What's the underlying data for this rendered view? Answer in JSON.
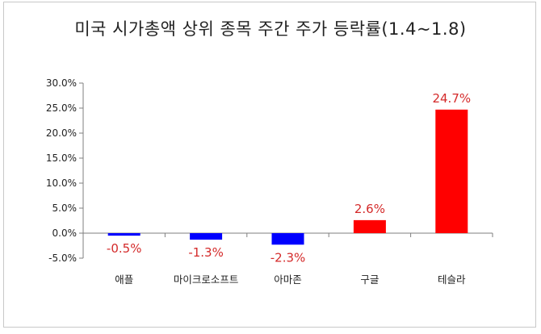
{
  "chart_data": {
    "type": "bar",
    "title": "미국 시가총액 상위 종목 주간 주가 등락률(1.4~1.8)",
    "categories": [
      "애플",
      "마이크로소프트",
      "아마존",
      "구글",
      "테슬라"
    ],
    "values": [
      -0.5,
      -1.3,
      -2.3,
      2.6,
      24.7
    ],
    "data_labels": [
      "-0.5%",
      "-1.3%",
      "-2.3%",
      "2.6%",
      "24.7%"
    ],
    "ylim": [
      -5,
      30
    ],
    "yticks": [
      30,
      25,
      20,
      15,
      10,
      5,
      0,
      -5
    ],
    "ytick_labels": [
      "30.0%",
      "25.0%",
      "20.0%",
      "15.0%",
      "10.0%",
      "5.0%",
      "0.0%",
      "-5.0%"
    ],
    "xlabel": "",
    "ylabel": "",
    "grid": false,
    "legend": "none",
    "colors": {
      "negative": "#0000ff",
      "positive": "#ff0000",
      "label": "#d42a2a"
    }
  }
}
